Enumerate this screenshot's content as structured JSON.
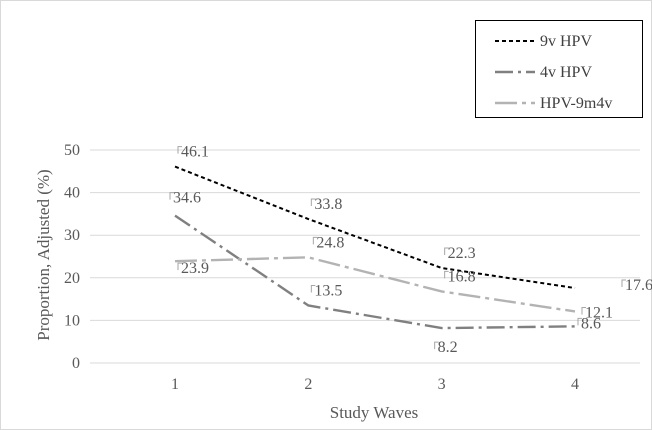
{
  "chart_data": {
    "type": "line",
    "title": "",
    "xlabel": "Study Waves",
    "ylabel": "Proportion, Adjusted (%)",
    "categories": [
      "1",
      "2",
      "3",
      "4"
    ],
    "yticks": [
      "0",
      "10",
      "20",
      "30",
      "40",
      "50"
    ],
    "ylim": [
      0,
      50
    ],
    "grid": "horizontal",
    "legend": "top-right",
    "series": [
      {
        "name": "9v HPV",
        "values": [
          46.1,
          33.8,
          22.3,
          17.6
        ],
        "labels": [
          "46.1",
          "33.8",
          "22.3",
          "17.6"
        ],
        "color": "#000000",
        "style": "dotted"
      },
      {
        "name": "4v HPV",
        "values": [
          34.6,
          13.5,
          8.2,
          8.6
        ],
        "labels": [
          "34.6",
          "13.5",
          "8.2",
          "8.6"
        ],
        "color": "#808080",
        "style": "dash-dot"
      },
      {
        "name": "HPV-9m4v",
        "values": [
          23.9,
          24.8,
          16.8,
          12.1
        ],
        "labels": [
          "23.9",
          "24.8",
          "16.8",
          "12.1"
        ],
        "color": "#b3b3b3",
        "style": "long-dash-dot"
      }
    ]
  }
}
